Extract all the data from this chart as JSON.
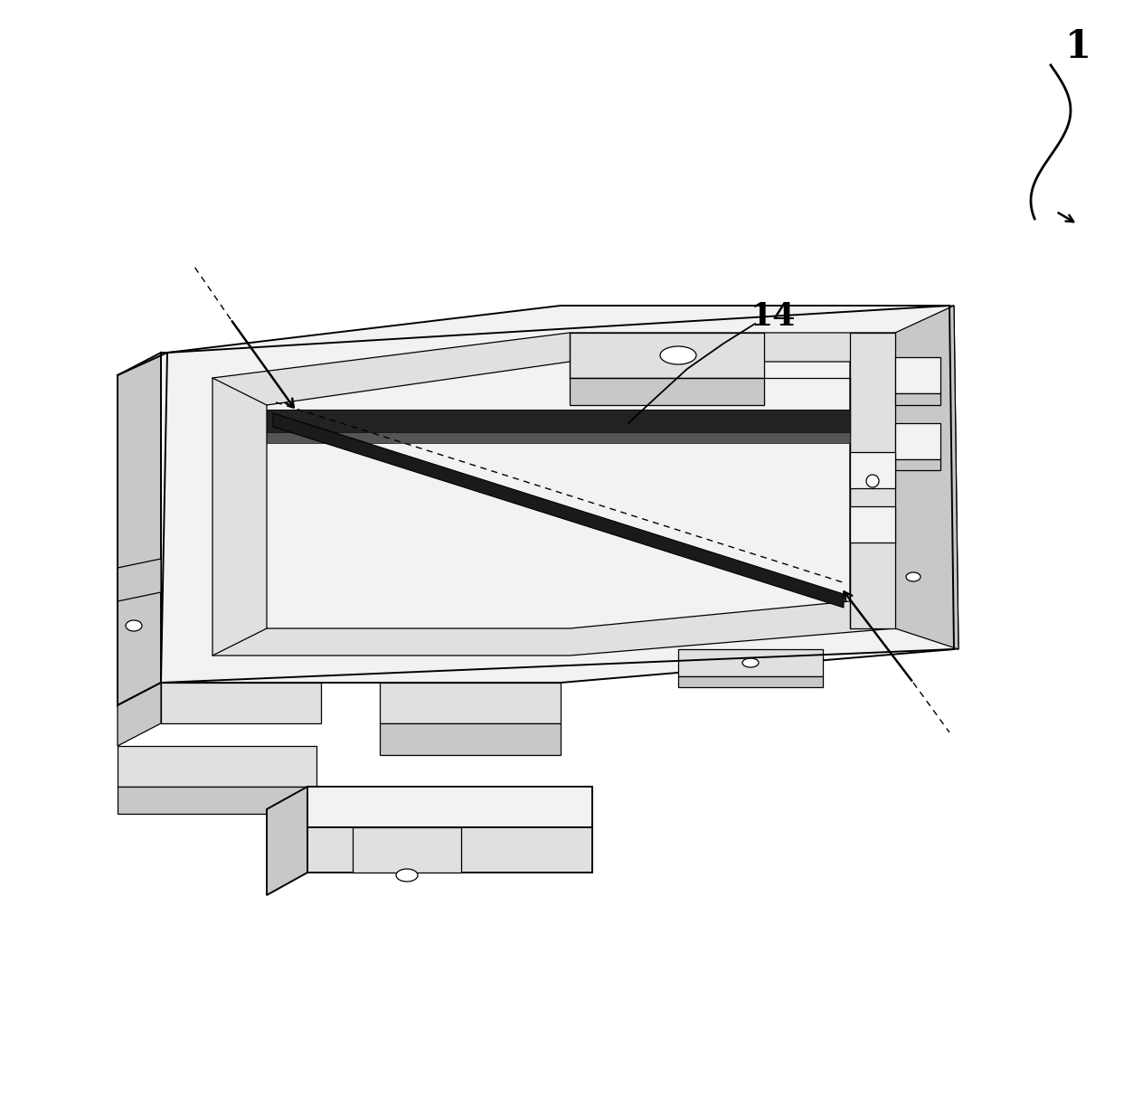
{
  "bg_color": "#ffffff",
  "lc": "#000000",
  "lw": 1.4,
  "tlw": 0.9,
  "fc_white": "#ffffff",
  "fc_light": "#f2f2f2",
  "fc_mid": "#e0e0e0",
  "fc_dark": "#c8c8c8",
  "fc_darker": "#b0b0b0",
  "fc_black": "#1a1a1a",
  "fig_w": 12.53,
  "fig_h": 12.21
}
